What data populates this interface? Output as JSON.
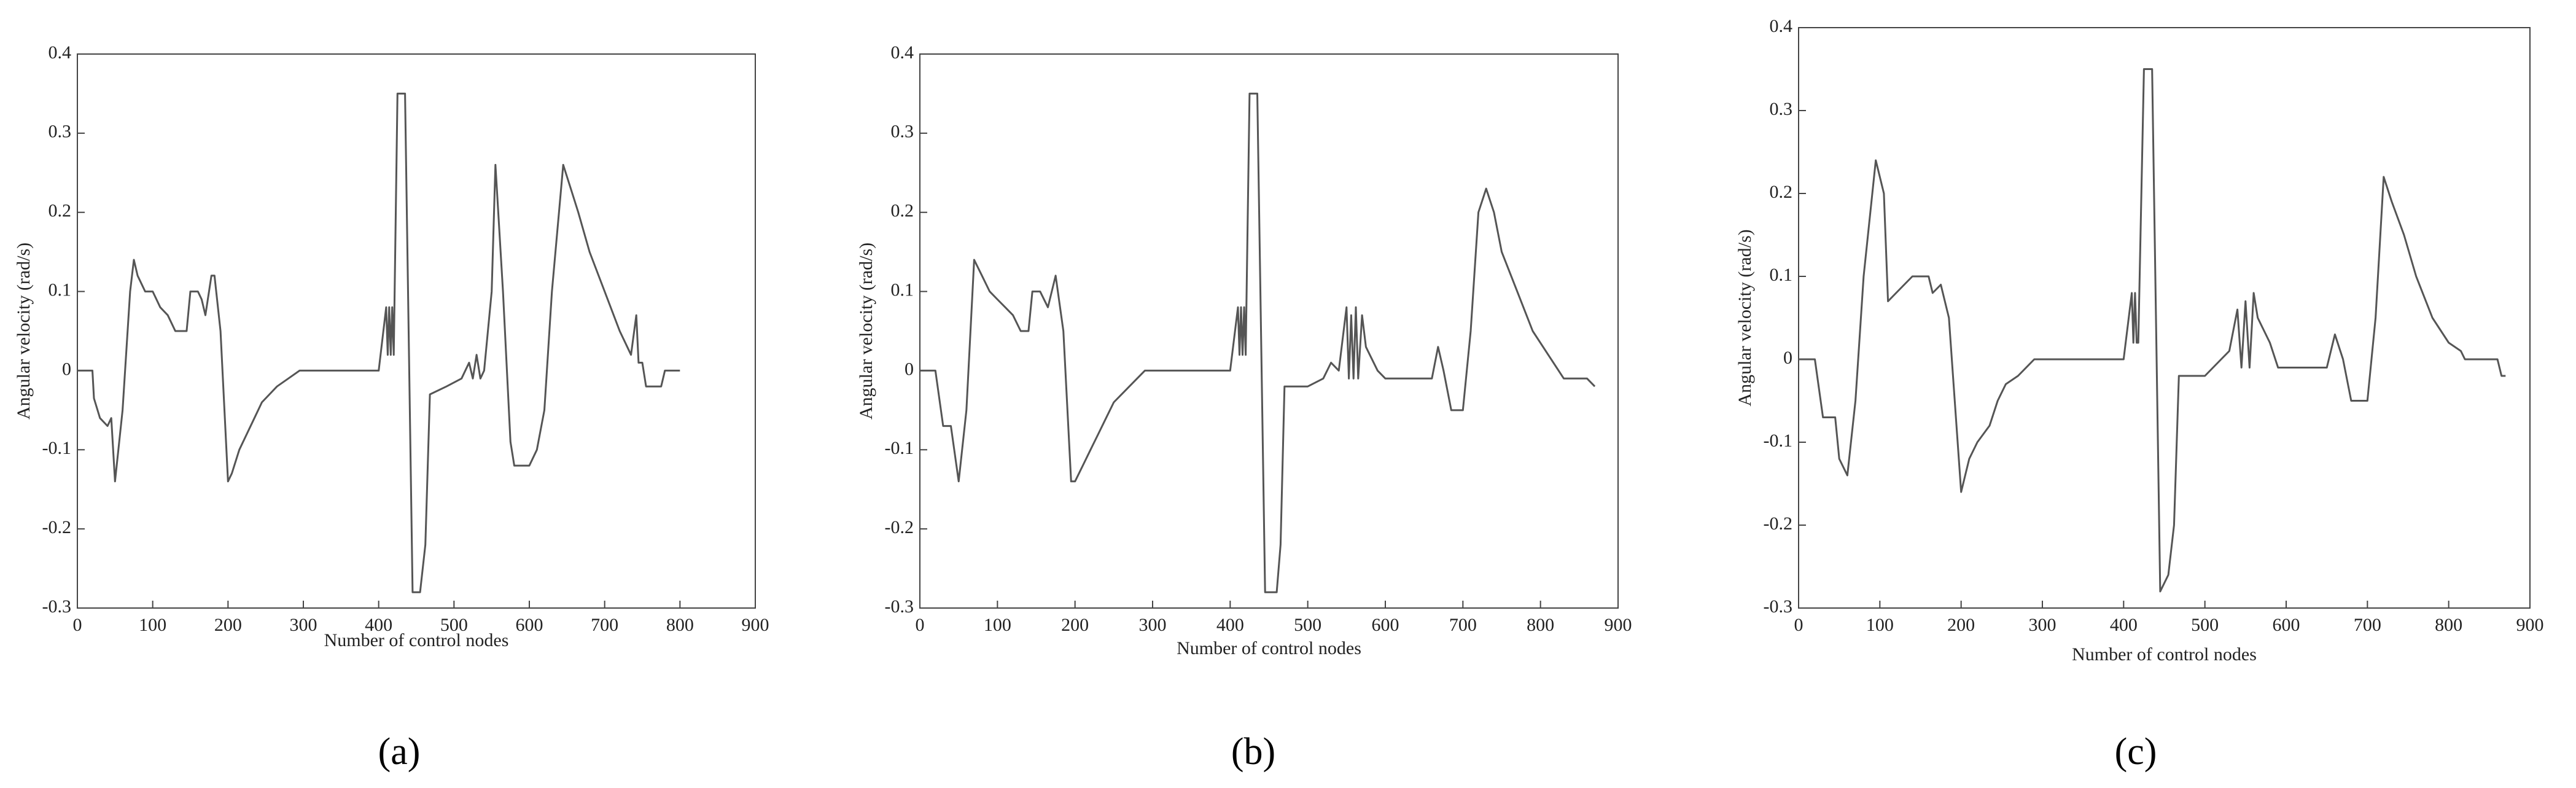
{
  "chart_data": [
    {
      "type": "line",
      "xlabel": "Number of control nodes",
      "ylabel": "Angular velocity (rad/s)",
      "label": "(a)",
      "xlim": [
        0,
        900
      ],
      "xticks": [
        0,
        100,
        200,
        300,
        400,
        500,
        600,
        700,
        800,
        900
      ],
      "ylim": [
        -0.3,
        0.4
      ],
      "yticks": [
        -0.3,
        -0.2,
        -0.1,
        0,
        0.1,
        0.2,
        0.3,
        0.4
      ],
      "color": "#555555",
      "x": [
        0,
        20,
        22,
        30,
        40,
        45,
        50,
        60,
        70,
        75,
        80,
        90,
        100,
        110,
        120,
        130,
        145,
        150,
        160,
        165,
        170,
        178,
        182,
        190,
        200,
        205,
        215,
        225,
        235,
        245,
        255,
        265,
        280,
        295,
        400,
        410,
        412,
        414,
        416,
        418,
        420,
        425,
        435,
        445,
        455,
        462,
        468,
        490,
        510,
        520,
        525,
        530,
        535,
        540,
        550,
        555,
        565,
        575,
        580,
        600,
        610,
        620,
        630,
        645,
        655,
        665,
        680,
        700,
        720,
        735,
        742,
        745,
        750,
        755,
        775,
        780,
        800
      ],
      "values": [
        0,
        0,
        -0.035,
        -0.06,
        -0.07,
        -0.06,
        -0.14,
        -0.05,
        0.1,
        0.14,
        0.12,
        0.1,
        0.1,
        0.08,
        0.07,
        0.05,
        0.05,
        0.1,
        0.1,
        0.09,
        0.07,
        0.12,
        0.12,
        0.05,
        -0.14,
        -0.13,
        -0.1,
        -0.08,
        -0.06,
        -0.04,
        -0.03,
        -0.02,
        -0.01,
        0,
        0,
        0.08,
        0.02,
        0.08,
        0.02,
        0.08,
        0.02,
        0.35,
        0.35,
        -0.28,
        -0.28,
        -0.22,
        -0.03,
        -0.02,
        -0.01,
        0.01,
        -0.01,
        0.02,
        -0.01,
        0,
        0.1,
        0.26,
        0.1,
        -0.09,
        -0.12,
        -0.12,
        -0.1,
        -0.05,
        0.1,
        0.26,
        0.23,
        0.2,
        0.15,
        0.1,
        0.05,
        0.02,
        0.07,
        0.01,
        0.01,
        -0.02,
        -0.02,
        0,
        0
      ]
    },
    {
      "type": "line",
      "xlabel": "Number of control nodes",
      "ylabel": "Angular velocity (rad/s)",
      "label": "(b)",
      "xlim": [
        0,
        900
      ],
      "xticks": [
        0,
        100,
        200,
        300,
        400,
        500,
        600,
        700,
        800,
        900
      ],
      "ylim": [
        -0.3,
        0.4
      ],
      "yticks": [
        -0.3,
        -0.2,
        -0.1,
        0,
        0.1,
        0.2,
        0.3,
        0.4
      ],
      "color": "#555555",
      "x": [
        0,
        20,
        30,
        40,
        50,
        60,
        70,
        80,
        90,
        100,
        110,
        120,
        130,
        140,
        145,
        155,
        165,
        175,
        185,
        195,
        200,
        210,
        220,
        230,
        240,
        250,
        260,
        270,
        290,
        400,
        410,
        412,
        414,
        416,
        418,
        420,
        425,
        435,
        445,
        460,
        465,
        470,
        500,
        520,
        530,
        540,
        550,
        553,
        556,
        559,
        562,
        565,
        570,
        575,
        580,
        590,
        600,
        660,
        668,
        675,
        685,
        700,
        710,
        720,
        730,
        740,
        750,
        770,
        790,
        810,
        830,
        860,
        870
      ],
      "values": [
        0,
        0,
        -0.07,
        -0.07,
        -0.14,
        -0.05,
        0.14,
        0.12,
        0.1,
        0.09,
        0.08,
        0.07,
        0.05,
        0.05,
        0.1,
        0.1,
        0.08,
        0.12,
        0.05,
        -0.14,
        -0.14,
        -0.12,
        -0.1,
        -0.08,
        -0.06,
        -0.04,
        -0.03,
        -0.02,
        0,
        0,
        0.08,
        0.02,
        0.08,
        0.02,
        0.08,
        0.02,
        0.35,
        0.35,
        -0.28,
        -0.28,
        -0.22,
        -0.02,
        -0.02,
        -0.01,
        0.01,
        0,
        0.08,
        -0.01,
        0.07,
        -0.01,
        0.08,
        -0.01,
        0.07,
        0.03,
        0.02,
        0,
        -0.01,
        -0.01,
        0.03,
        0,
        -0.05,
        -0.05,
        0.05,
        0.2,
        0.23,
        0.2,
        0.15,
        0.1,
        0.05,
        0.02,
        -0.01,
        -0.01,
        -0.02
      ]
    },
    {
      "type": "line",
      "xlabel": "Number of control nodes",
      "ylabel": "Angular velocity (rad/s)",
      "label": "(c)",
      "xlim": [
        0,
        900
      ],
      "xticks": [
        0,
        100,
        200,
        300,
        400,
        500,
        600,
        700,
        800,
        900
      ],
      "ylim": [
        -0.3,
        0.4
      ],
      "yticks": [
        -0.3,
        -0.2,
        -0.1,
        0,
        0.1,
        0.2,
        0.3,
        0.4
      ],
      "color": "#555555",
      "x": [
        0,
        20,
        30,
        45,
        50,
        60,
        70,
        80,
        95,
        105,
        110,
        130,
        140,
        160,
        165,
        175,
        185,
        200,
        210,
        220,
        235,
        245,
        255,
        270,
        290,
        400,
        410,
        412,
        414,
        416,
        418,
        425,
        435,
        445,
        455,
        462,
        468,
        500,
        520,
        530,
        540,
        545,
        550,
        555,
        560,
        565,
        580,
        590,
        650,
        660,
        670,
        680,
        700,
        710,
        720,
        730,
        745,
        760,
        780,
        800,
        815,
        820,
        860,
        865,
        870
      ],
      "values": [
        0,
        0,
        -0.07,
        -0.07,
        -0.12,
        -0.14,
        -0.05,
        0.1,
        0.24,
        0.2,
        0.07,
        0.09,
        0.1,
        0.1,
        0.08,
        0.09,
        0.05,
        -0.16,
        -0.12,
        -0.1,
        -0.08,
        -0.05,
        -0.03,
        -0.02,
        0,
        0,
        0.08,
        0.02,
        0.08,
        0.02,
        0.02,
        0.35,
        0.35,
        -0.28,
        -0.26,
        -0.2,
        -0.02,
        -0.02,
        0,
        0.01,
        0.06,
        -0.01,
        0.07,
        -0.01,
        0.08,
        0.05,
        0.02,
        -0.01,
        -0.01,
        0.03,
        0,
        -0.05,
        -0.05,
        0.05,
        0.22,
        0.19,
        0.15,
        0.1,
        0.05,
        0.02,
        0.01,
        0,
        0,
        -0.02,
        -0.02
      ]
    }
  ]
}
